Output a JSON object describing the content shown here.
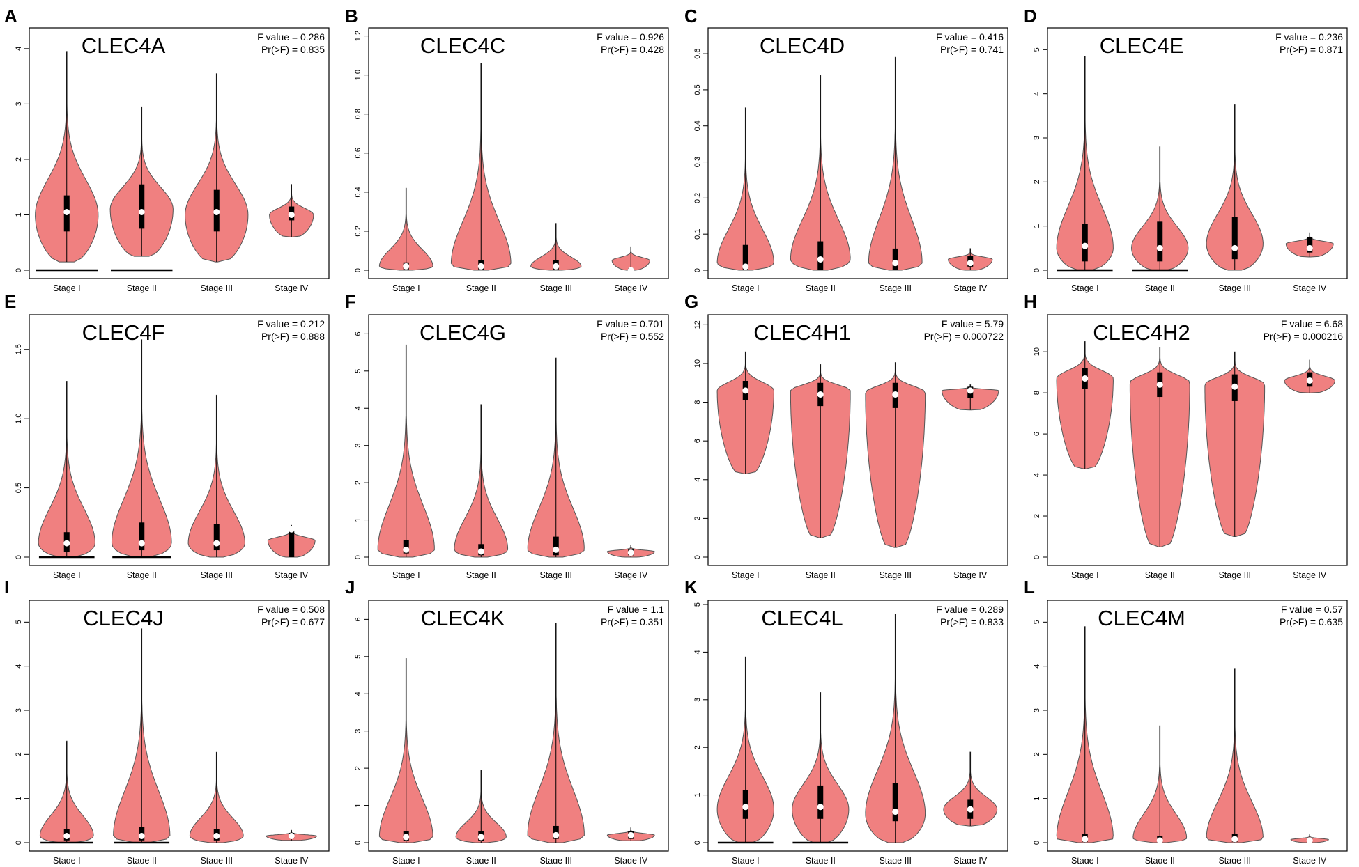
{
  "figure": {
    "categories": [
      "Stage I",
      "Stage II",
      "Stage III",
      "Stage IV"
    ],
    "violin_fill": "#f08080",
    "violin_stroke": "#555555",
    "box_color": "#000000",
    "median_color": "#ffffff"
  },
  "chart_data": [
    {
      "type": "violin",
      "panel_label": "A",
      "title": "CLEC4A",
      "f_value_text": "F value = 0.286",
      "pr_text": "Pr(>F) = 0.835",
      "categories": [
        "Stage I",
        "Stage II",
        "Stage III",
        "Stage IV"
      ],
      "ylim": [
        0,
        4.3
      ],
      "yticks": [
        0,
        1,
        2,
        3,
        4
      ],
      "violins": [
        {
          "min": 0.15,
          "q1": 0.7,
          "median": 1.05,
          "q3": 1.35,
          "max": 3.95,
          "peak": 1.0,
          "width": 1.0,
          "zero_tail": true
        },
        {
          "min": 0.25,
          "q1": 0.75,
          "median": 1.05,
          "q3": 1.55,
          "max": 2.95,
          "peak": 1.1,
          "width": 1.0,
          "zero_tail": true
        },
        {
          "min": 0.15,
          "q1": 0.7,
          "median": 1.05,
          "q3": 1.45,
          "max": 3.55,
          "peak": 1.0,
          "width": 1.0,
          "zero_tail": false
        },
        {
          "min": 0.6,
          "q1": 0.9,
          "median": 1.0,
          "q3": 1.15,
          "max": 1.55,
          "peak": 1.0,
          "width": 0.7,
          "zero_tail": false
        }
      ]
    },
    {
      "type": "violin",
      "panel_label": "B",
      "title": "CLEC4C",
      "f_value_text": "F value = 0.926",
      "pr_text": "Pr(>F) = 0.428",
      "categories": [
        "Stage I",
        "Stage II",
        "Stage III",
        "Stage IV"
      ],
      "ylim": [
        0,
        1.22
      ],
      "yticks": [
        0,
        0.2,
        0.4,
        0.6,
        0.8,
        1.0,
        1.2
      ],
      "violins": [
        {
          "min": 0,
          "q1": 0,
          "median": 0.02,
          "q3": 0.04,
          "max": 0.42,
          "peak": 0.02,
          "width": 0.85,
          "zero_tail": false
        },
        {
          "min": 0,
          "q1": 0,
          "median": 0.02,
          "q3": 0.05,
          "max": 1.06,
          "peak": 0.03,
          "width": 0.95,
          "zero_tail": false
        },
        {
          "min": 0,
          "q1": 0,
          "median": 0.02,
          "q3": 0.05,
          "max": 0.24,
          "peak": 0.02,
          "width": 0.8,
          "zero_tail": false
        },
        {
          "min": 0,
          "q1": 0,
          "median": 0.0,
          "q3": 0.01,
          "max": 0.12,
          "peak": 0.05,
          "width": 0.6,
          "zero_tail": false
        }
      ]
    },
    {
      "type": "violin",
      "panel_label": "C",
      "title": "CLEC4D",
      "f_value_text": "F value = 0.416",
      "pr_text": "Pr(>F) = 0.741",
      "categories": [
        "Stage I",
        "Stage II",
        "Stage III",
        "Stage IV"
      ],
      "ylim": [
        0,
        0.66
      ],
      "yticks": [
        0,
        0.1,
        0.2,
        0.3,
        0.4,
        0.5,
        0.6
      ],
      "violins": [
        {
          "min": 0,
          "q1": 0,
          "median": 0.01,
          "q3": 0.07,
          "max": 0.45,
          "peak": 0.02,
          "width": 0.9,
          "zero_tail": false
        },
        {
          "min": 0,
          "q1": 0,
          "median": 0.03,
          "q3": 0.08,
          "max": 0.54,
          "peak": 0.03,
          "width": 0.95,
          "zero_tail": false
        },
        {
          "min": 0,
          "q1": 0,
          "median": 0.02,
          "q3": 0.06,
          "max": 0.59,
          "peak": 0.02,
          "width": 0.85,
          "zero_tail": false
        },
        {
          "min": 0,
          "q1": 0.01,
          "median": 0.02,
          "q3": 0.04,
          "max": 0.06,
          "peak": 0.03,
          "width": 0.7,
          "zero_tail": false
        }
      ]
    },
    {
      "type": "violin",
      "panel_label": "D",
      "title": "CLEC4E",
      "f_value_text": "F value = 0.236",
      "pr_text": "Pr(>F) = 0.871",
      "categories": [
        "Stage I",
        "Stage II",
        "Stage III",
        "Stage IV"
      ],
      "ylim": [
        0,
        5.4
      ],
      "yticks": [
        0,
        1,
        2,
        3,
        4,
        5
      ],
      "violins": [
        {
          "min": 0,
          "q1": 0.2,
          "median": 0.55,
          "q3": 1.05,
          "max": 4.85,
          "peak": 0.5,
          "width": 0.9,
          "zero_tail": true
        },
        {
          "min": 0,
          "q1": 0.2,
          "median": 0.5,
          "q3": 1.1,
          "max": 2.8,
          "peak": 0.5,
          "width": 0.9,
          "zero_tail": true
        },
        {
          "min": 0,
          "q1": 0.25,
          "median": 0.5,
          "q3": 1.2,
          "max": 3.75,
          "peak": 0.6,
          "width": 0.9,
          "zero_tail": false
        },
        {
          "min": 0.3,
          "q1": 0.4,
          "median": 0.5,
          "q3": 0.75,
          "max": 0.85,
          "peak": 0.6,
          "width": 0.75,
          "zero_tail": false
        }
      ]
    },
    {
      "type": "violin",
      "panel_label": "E",
      "title": "CLEC4F",
      "f_value_text": "F value = 0.212",
      "pr_text": "Pr(>F) = 0.888",
      "categories": [
        "Stage I",
        "Stage II",
        "Stage III",
        "Stage IV"
      ],
      "ylim": [
        0,
        1.72
      ],
      "yticks": [
        0,
        0.5,
        1.0,
        1.5
      ],
      "violins": [
        {
          "min": 0,
          "q1": 0.04,
          "median": 0.1,
          "q3": 0.18,
          "max": 1.27,
          "peak": 0.1,
          "width": 0.9,
          "zero_tail": true
        },
        {
          "min": 0,
          "q1": 0.05,
          "median": 0.1,
          "q3": 0.25,
          "max": 1.57,
          "peak": 0.1,
          "width": 0.95,
          "zero_tail": true
        },
        {
          "min": 0,
          "q1": 0.05,
          "median": 0.1,
          "q3": 0.24,
          "max": 1.17,
          "peak": 0.1,
          "width": 0.9,
          "zero_tail": false
        },
        {
          "min": 0,
          "q1": 0,
          "median": 0.2,
          "q3": 0.2,
          "max": 0.23,
          "peak": 0.12,
          "width": 0.75,
          "zero_tail": false
        }
      ]
    },
    {
      "type": "violin",
      "panel_label": "F",
      "title": "CLEC4G",
      "f_value_text": "F value = 0.701",
      "pr_text": "Pr(>F) = 0.552",
      "categories": [
        "Stage I",
        "Stage II",
        "Stage III",
        "Stage IV"
      ],
      "ylim": [
        0,
        6.4
      ],
      "yticks": [
        0,
        1,
        2,
        3,
        4,
        5,
        6
      ],
      "violins": [
        {
          "min": 0,
          "q1": 0.1,
          "median": 0.2,
          "q3": 0.45,
          "max": 5.7,
          "peak": 0.2,
          "width": 0.9,
          "zero_tail": false
        },
        {
          "min": 0,
          "q1": 0.05,
          "median": 0.15,
          "q3": 0.35,
          "max": 4.1,
          "peak": 0.2,
          "width": 0.85,
          "zero_tail": false
        },
        {
          "min": 0,
          "q1": 0.05,
          "median": 0.2,
          "q3": 0.55,
          "max": 5.35,
          "peak": 0.2,
          "width": 0.9,
          "zero_tail": false
        },
        {
          "min": 0,
          "q1": 0.05,
          "median": 0.12,
          "q3": 0.22,
          "max": 0.32,
          "peak": 0.15,
          "width": 0.75,
          "zero_tail": false
        }
      ]
    },
    {
      "type": "violin",
      "panel_label": "G",
      "title": "CLEC4H1",
      "f_value_text": "F value = 5.79",
      "pr_text": "Pr(>F) = 0.000722",
      "categories": [
        "Stage I",
        "Stage II",
        "Stage III",
        "Stage IV"
      ],
      "ylim": [
        0,
        12.3
      ],
      "yticks": [
        0,
        2,
        4,
        6,
        8,
        10,
        12
      ],
      "violins": [
        {
          "min": 4.3,
          "q1": 8.1,
          "median": 8.6,
          "q3": 9.1,
          "max": 10.6,
          "peak": 8.6,
          "width": 0.9,
          "zero_tail": false
        },
        {
          "min": 1.0,
          "q1": 7.8,
          "median": 8.4,
          "q3": 9.0,
          "max": 9.95,
          "peak": 8.6,
          "width": 0.95,
          "zero_tail": false
        },
        {
          "min": 0.5,
          "q1": 7.7,
          "median": 8.4,
          "q3": 9.0,
          "max": 10.05,
          "peak": 8.5,
          "width": 0.95,
          "zero_tail": false
        },
        {
          "min": 7.6,
          "q1": 8.2,
          "median": 8.6,
          "q3": 8.8,
          "max": 8.9,
          "peak": 8.6,
          "width": 0.9,
          "zero_tail": false
        }
      ]
    },
    {
      "type": "violin",
      "panel_label": "H",
      "title": "CLEC4H2",
      "f_value_text": "F value = 6.68",
      "pr_text": "Pr(>F) = 0.000216",
      "categories": [
        "Stage I",
        "Stage II",
        "Stage III",
        "Stage IV"
      ],
      "ylim": [
        0,
        11.6
      ],
      "yticks": [
        0,
        2,
        4,
        6,
        8,
        10
      ],
      "violins": [
        {
          "min": 4.3,
          "q1": 8.2,
          "median": 8.7,
          "q3": 9.2,
          "max": 10.5,
          "peak": 8.7,
          "width": 0.9,
          "zero_tail": false
        },
        {
          "min": 0.5,
          "q1": 7.8,
          "median": 8.4,
          "q3": 9.0,
          "max": 10.2,
          "peak": 8.5,
          "width": 0.95,
          "zero_tail": false
        },
        {
          "min": 1.0,
          "q1": 7.6,
          "median": 8.3,
          "q3": 8.9,
          "max": 10.0,
          "peak": 8.4,
          "width": 0.95,
          "zero_tail": false
        },
        {
          "min": 8.0,
          "q1": 8.3,
          "median": 8.6,
          "q3": 9.0,
          "max": 9.6,
          "peak": 8.6,
          "width": 0.8,
          "zero_tail": false
        }
      ]
    },
    {
      "type": "violin",
      "panel_label": "I",
      "title": "CLEC4J",
      "f_value_text": "F value = 0.508",
      "pr_text": "Pr(>F) = 0.677",
      "categories": [
        "Stage I",
        "Stage II",
        "Stage III",
        "Stage IV"
      ],
      "ylim": [
        0,
        5.4
      ],
      "yticks": [
        0,
        1,
        2,
        3,
        4,
        5
      ],
      "violins": [
        {
          "min": 0,
          "q1": 0.05,
          "median": 0.15,
          "q3": 0.3,
          "max": 2.3,
          "peak": 0.15,
          "width": 0.85,
          "zero_tail": true
        },
        {
          "min": 0,
          "q1": 0.05,
          "median": 0.15,
          "q3": 0.35,
          "max": 4.85,
          "peak": 0.15,
          "width": 0.9,
          "zero_tail": true
        },
        {
          "min": 0,
          "q1": 0.05,
          "median": 0.15,
          "q3": 0.3,
          "max": 2.05,
          "peak": 0.15,
          "width": 0.85,
          "zero_tail": false
        },
        {
          "min": 0.05,
          "q1": 0.1,
          "median": 0.15,
          "q3": 0.22,
          "max": 0.28,
          "peak": 0.15,
          "width": 0.8,
          "zero_tail": false
        }
      ]
    },
    {
      "type": "violin",
      "panel_label": "J",
      "title": "CLEC4K",
      "f_value_text": "F value = 1.1",
      "pr_text": "Pr(>F) = 0.351",
      "categories": [
        "Stage I",
        "Stage II",
        "Stage III",
        "Stage IV"
      ],
      "ylim": [
        0,
        6.4
      ],
      "yticks": [
        0,
        1,
        2,
        3,
        4,
        5,
        6
      ],
      "violins": [
        {
          "min": 0,
          "q1": 0.05,
          "median": 0.15,
          "q3": 0.3,
          "max": 4.95,
          "peak": 0.15,
          "width": 0.85,
          "zero_tail": false
        },
        {
          "min": 0,
          "q1": 0.05,
          "median": 0.15,
          "q3": 0.3,
          "max": 1.95,
          "peak": 0.15,
          "width": 0.8,
          "zero_tail": false
        },
        {
          "min": 0,
          "q1": 0.1,
          "median": 0.2,
          "q3": 0.45,
          "max": 5.9,
          "peak": 0.2,
          "width": 0.9,
          "zero_tail": false
        },
        {
          "min": 0.05,
          "q1": 0.1,
          "median": 0.2,
          "q3": 0.3,
          "max": 0.4,
          "peak": 0.2,
          "width": 0.75,
          "zero_tail": false
        }
      ]
    },
    {
      "type": "violin",
      "panel_label": "K",
      "title": "CLEC4L",
      "f_value_text": "F value = 0.289",
      "pr_text": "Pr(>F) = 0.833",
      "categories": [
        "Stage I",
        "Stage II",
        "Stage III",
        "Stage IV"
      ],
      "ylim": [
        0,
        5.0
      ],
      "yticks": [
        0,
        1,
        2,
        3,
        4,
        5
      ],
      "violins": [
        {
          "min": 0,
          "q1": 0.5,
          "median": 0.75,
          "q3": 1.1,
          "max": 3.9,
          "peak": 0.7,
          "width": 0.9,
          "zero_tail": true
        },
        {
          "min": 0,
          "q1": 0.5,
          "median": 0.75,
          "q3": 1.2,
          "max": 3.15,
          "peak": 0.7,
          "width": 0.9,
          "zero_tail": true
        },
        {
          "min": 0,
          "q1": 0.45,
          "median": 0.65,
          "q3": 1.25,
          "max": 4.8,
          "peak": 0.6,
          "width": 0.95,
          "zero_tail": false
        },
        {
          "min": 0.35,
          "q1": 0.5,
          "median": 0.7,
          "q3": 0.9,
          "max": 1.9,
          "peak": 0.7,
          "width": 0.85,
          "zero_tail": false
        }
      ]
    },
    {
      "type": "violin",
      "panel_label": "L",
      "title": "CLEC4M",
      "f_value_text": "F value = 0.57",
      "pr_text": "Pr(>F) = 0.635",
      "categories": [
        "Stage I",
        "Stage II",
        "Stage III",
        "Stage IV"
      ],
      "ylim": [
        0,
        5.4
      ],
      "yticks": [
        0,
        1,
        2,
        3,
        4,
        5
      ],
      "violins": [
        {
          "min": 0,
          "q1": 0.02,
          "median": 0.08,
          "q3": 0.2,
          "max": 4.9,
          "peak": 0.1,
          "width": 0.9,
          "zero_tail": false
        },
        {
          "min": 0,
          "q1": 0.02,
          "median": 0.05,
          "q3": 0.15,
          "max": 2.65,
          "peak": 0.1,
          "width": 0.85,
          "zero_tail": false
        },
        {
          "min": 0,
          "q1": 0.02,
          "median": 0.08,
          "q3": 0.2,
          "max": 3.95,
          "peak": 0.1,
          "width": 0.9,
          "zero_tail": false
        },
        {
          "min": 0,
          "q1": 0.02,
          "median": 0.05,
          "q3": 0.1,
          "max": 0.18,
          "peak": 0.07,
          "width": 0.6,
          "zero_tail": false
        }
      ]
    }
  ]
}
